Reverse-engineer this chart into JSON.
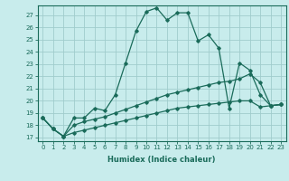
{
  "xlabel": "Humidex (Indice chaleur)",
  "bg_color": "#c8ecec",
  "line_color": "#1a6b5a",
  "grid_color": "#a0cccc",
  "xlim": [
    -0.5,
    23.5
  ],
  "ylim": [
    16.7,
    27.8
  ],
  "xticks": [
    0,
    1,
    2,
    3,
    4,
    5,
    6,
    7,
    8,
    9,
    10,
    11,
    12,
    13,
    14,
    15,
    16,
    17,
    18,
    19,
    20,
    21,
    22,
    23
  ],
  "yticks": [
    17,
    18,
    19,
    20,
    21,
    22,
    23,
    24,
    25,
    26,
    27
  ],
  "curve1_x": [
    0,
    1,
    2,
    3,
    4,
    5,
    6,
    7,
    8,
    9,
    10,
    11,
    12,
    13,
    14,
    15,
    16,
    17,
    18,
    19,
    20,
    21,
    22,
    23
  ],
  "curve1_y": [
    18.6,
    17.7,
    17.1,
    18.6,
    18.6,
    19.4,
    19.2,
    20.5,
    23.1,
    25.7,
    27.3,
    27.6,
    26.6,
    27.2,
    27.2,
    24.9,
    25.4,
    24.3,
    19.4,
    23.1,
    22.5,
    20.5,
    19.6,
    19.7
  ],
  "curve2_x": [
    0,
    1,
    2,
    3,
    4,
    5,
    6,
    7,
    8,
    9,
    10,
    11,
    12,
    13,
    14,
    15,
    16,
    17,
    18,
    19,
    20,
    21,
    22,
    23
  ],
  "curve2_y": [
    18.6,
    17.7,
    17.1,
    18.0,
    18.3,
    18.5,
    18.7,
    19.0,
    19.3,
    19.6,
    19.9,
    20.2,
    20.5,
    20.7,
    20.9,
    21.1,
    21.3,
    21.5,
    21.6,
    21.8,
    22.2,
    21.5,
    19.6,
    19.7
  ],
  "curve3_x": [
    0,
    1,
    2,
    3,
    4,
    5,
    6,
    7,
    8,
    9,
    10,
    11,
    12,
    13,
    14,
    15,
    16,
    17,
    18,
    19,
    20,
    21,
    22,
    23
  ],
  "curve3_y": [
    18.6,
    17.7,
    17.1,
    17.4,
    17.6,
    17.8,
    18.0,
    18.2,
    18.4,
    18.6,
    18.8,
    19.0,
    19.2,
    19.4,
    19.5,
    19.6,
    19.7,
    19.8,
    19.9,
    20.0,
    20.0,
    19.5,
    19.6,
    19.7
  ],
  "tick_fontsize": 5.0,
  "xlabel_fontsize": 6.0
}
